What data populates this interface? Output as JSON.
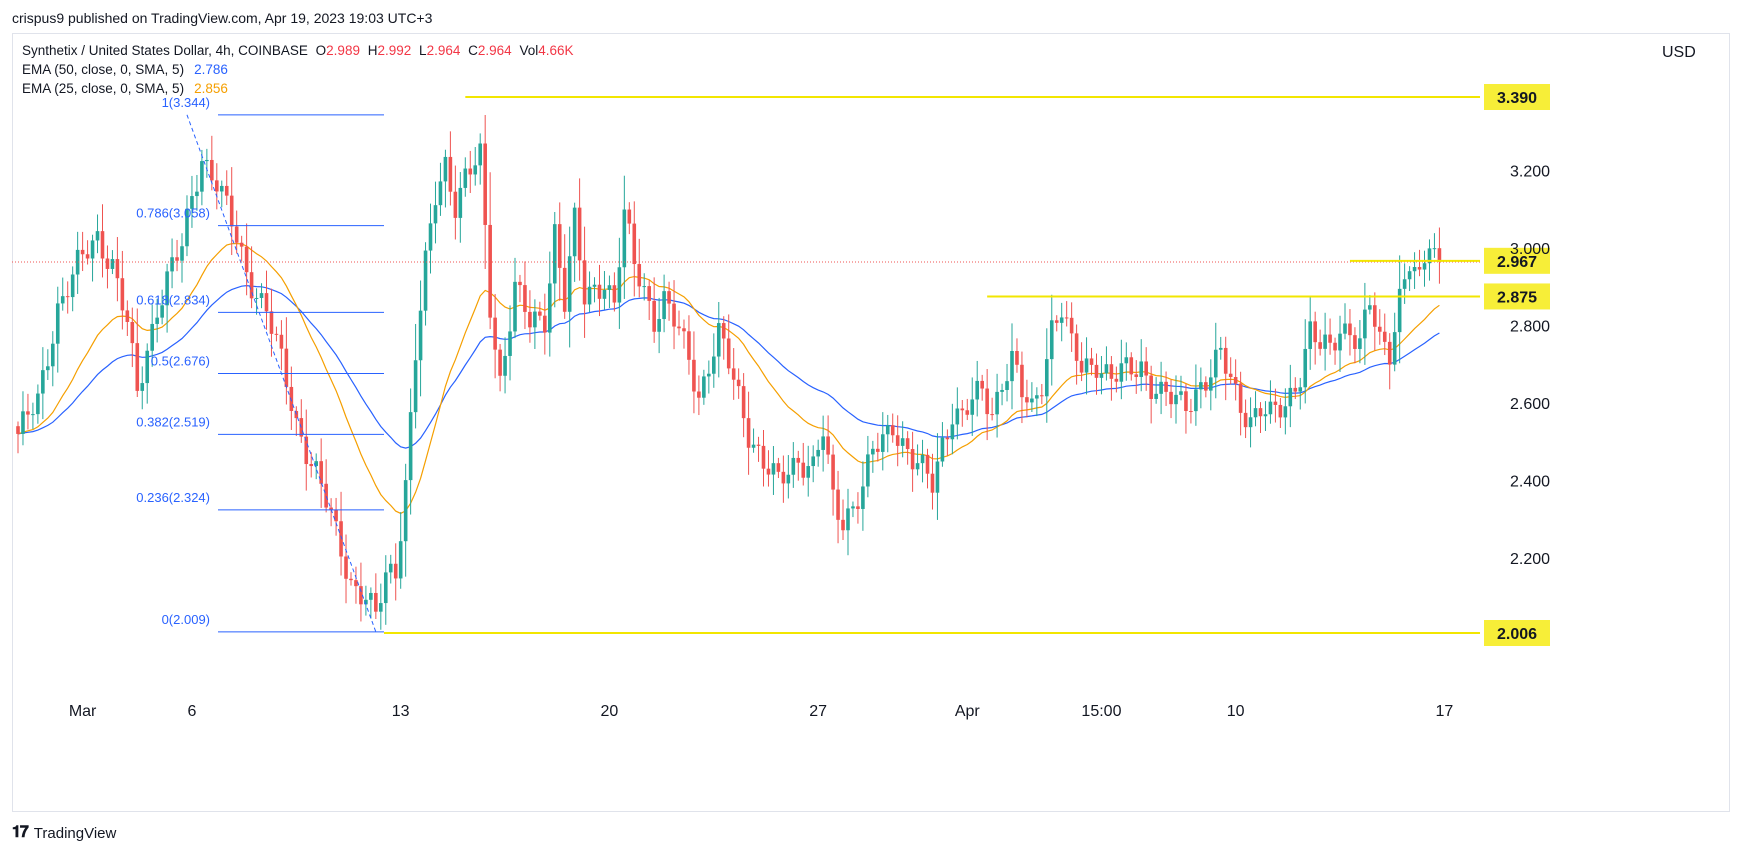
{
  "header": {
    "published": "crispus9 published on TradingView.com, Apr 19, 2023 19:03 UTC+3"
  },
  "legend": {
    "symbol": "Synthetix / United States Dollar, 4h, COINBASE",
    "open_k": "O",
    "open": "2.989",
    "high_k": "H",
    "high": "2.992",
    "low_k": "L",
    "low": "2.964",
    "close_k": "C",
    "close": "2.964",
    "vol_k": "Vol",
    "vol": "4.66K",
    "ema50_label": "EMA (50, close, 0, SMA, 5)",
    "ema50_value": "2.786",
    "ema25_label": "EMA (25, close, 0, SMA, 5)",
    "ema25_value": "2.856"
  },
  "currency": "USD",
  "brand": "TradingView",
  "colors": {
    "up": "#26a69a",
    "down": "#ef5350",
    "ema50": "#2962ff",
    "ema25": "#f59f00",
    "fib": "#2962ff",
    "level": "#f2e600",
    "tag_bg": "#f7ee38",
    "last": "#ef5350"
  },
  "chart_data": {
    "type": "candlestick",
    "ylim": [
      1.75,
      3.48
    ],
    "y_ticks": [
      {
        "value": 3.2,
        "label": "3.200"
      },
      {
        "value": 3.0,
        "label": "3.000"
      },
      {
        "value": 2.8,
        "label": "2.800"
      },
      {
        "value": 2.6,
        "label": "2.600"
      },
      {
        "value": 2.4,
        "label": "2.400"
      },
      {
        "value": 2.2,
        "label": "2.200"
      }
    ],
    "x_ticks": [
      {
        "index": 13,
        "label": "Mar"
      },
      {
        "index": 35,
        "label": "6"
      },
      {
        "index": 77,
        "label": "13"
      },
      {
        "index": 119,
        "label": "20"
      },
      {
        "index": 161,
        "label": "27"
      },
      {
        "index": 191,
        "label": "Apr"
      },
      {
        "index": 218,
        "label": "15:00"
      },
      {
        "index": 245,
        "label": "10"
      },
      {
        "index": 287,
        "label": "17"
      }
    ],
    "fib_levels": [
      {
        "label": "1(3.344)",
        "value": 3.344
      },
      {
        "label": "0.786(3.058)",
        "value": 3.058
      },
      {
        "label": "0.618(2.834)",
        "value": 2.834
      },
      {
        "label": "0.5(2.676)",
        "value": 2.676
      },
      {
        "label": "0.382(2.519)",
        "value": 2.519
      },
      {
        "label": "0.236(2.324)",
        "value": 2.324
      },
      {
        "label": "0(2.009)",
        "value": 2.009
      }
    ],
    "fib_range": {
      "from_index": 34,
      "to_index": 72
    },
    "horizontal_levels": [
      {
        "value": 3.39,
        "label": "3.390",
        "from_index": 90
      },
      {
        "value": 2.967,
        "label": "2.967",
        "from_index": 268
      },
      {
        "value": 2.875,
        "label": "2.875",
        "from_index": 195
      },
      {
        "value": 2.006,
        "label": "2.006",
        "from_index": 0
      }
    ],
    "last_price": 2.964,
    "anchors": [
      [
        0,
        2.52
      ],
      [
        4,
        2.6
      ],
      [
        8,
        2.85
      ],
      [
        12,
        2.95
      ],
      [
        16,
        3.03
      ],
      [
        19,
        2.96
      ],
      [
        22,
        2.8
      ],
      [
        24,
        2.62
      ],
      [
        26,
        2.74
      ],
      [
        28,
        2.85
      ],
      [
        30,
        2.92
      ],
      [
        33,
        3.0
      ],
      [
        35,
        3.13
      ],
      [
        37,
        3.24
      ],
      [
        40,
        3.17
      ],
      [
        43,
        3.06
      ],
      [
        46,
        2.94
      ],
      [
        50,
        2.84
      ],
      [
        53,
        2.7
      ],
      [
        56,
        2.55
      ],
      [
        60,
        2.42
      ],
      [
        64,
        2.26
      ],
      [
        67,
        2.14
      ],
      [
        70,
        2.1
      ],
      [
        72,
        2.04
      ],
      [
        74,
        2.15
      ],
      [
        76,
        2.17
      ],
      [
        78,
        2.4
      ],
      [
        80,
        2.73
      ],
      [
        82,
        2.95
      ],
      [
        84,
        3.13
      ],
      [
        86,
        3.22
      ],
      [
        88,
        3.12
      ],
      [
        90,
        3.18
      ],
      [
        93,
        3.23
      ],
      [
        95,
        2.85
      ],
      [
        97,
        2.66
      ],
      [
        100,
        2.9
      ],
      [
        103,
        2.8
      ],
      [
        106,
        2.82
      ],
      [
        108,
        3.05
      ],
      [
        110,
        2.86
      ],
      [
        112,
        3.06
      ],
      [
        114,
        2.87
      ],
      [
        116,
        2.9
      ],
      [
        118,
        2.92
      ],
      [
        120,
        2.85
      ],
      [
        122,
        3.08
      ],
      [
        124,
        2.96
      ],
      [
        126,
        2.9
      ],
      [
        128,
        2.82
      ],
      [
        130,
        2.86
      ],
      [
        133,
        2.78
      ],
      [
        135,
        2.72
      ],
      [
        137,
        2.62
      ],
      [
        139,
        2.7
      ],
      [
        141,
        2.77
      ],
      [
        143,
        2.7
      ],
      [
        145,
        2.62
      ],
      [
        147,
        2.53
      ],
      [
        150,
        2.44
      ],
      [
        153,
        2.39
      ],
      [
        155,
        2.43
      ],
      [
        157,
        2.46
      ],
      [
        160,
        2.43
      ],
      [
        162,
        2.52
      ],
      [
        164,
        2.35
      ],
      [
        166,
        2.3
      ],
      [
        168,
        2.34
      ],
      [
        170,
        2.38
      ],
      [
        172,
        2.47
      ],
      [
        174,
        2.5
      ],
      [
        176,
        2.55
      ],
      [
        178,
        2.5
      ],
      [
        180,
        2.45
      ],
      [
        182,
        2.42
      ],
      [
        184,
        2.39
      ],
      [
        186,
        2.5
      ],
      [
        188,
        2.58
      ],
      [
        190,
        2.56
      ],
      [
        192,
        2.6
      ],
      [
        194,
        2.63
      ],
      [
        196,
        2.58
      ],
      [
        198,
        2.66
      ],
      [
        200,
        2.71
      ],
      [
        202,
        2.62
      ],
      [
        204,
        2.58
      ],
      [
        206,
        2.66
      ],
      [
        208,
        2.8
      ],
      [
        210,
        2.84
      ],
      [
        212,
        2.74
      ],
      [
        214,
        2.69
      ],
      [
        217,
        2.71
      ],
      [
        220,
        2.66
      ],
      [
        223,
        2.68
      ],
      [
        226,
        2.7
      ],
      [
        228,
        2.65
      ],
      [
        230,
        2.62
      ],
      [
        233,
        2.6
      ],
      [
        235,
        2.6
      ],
      [
        238,
        2.65
      ],
      [
        240,
        2.67
      ],
      [
        242,
        2.72
      ],
      [
        244,
        2.66
      ],
      [
        246,
        2.6
      ],
      [
        248,
        2.56
      ],
      [
        250,
        2.58
      ],
      [
        252,
        2.56
      ],
      [
        255,
        2.6
      ],
      [
        258,
        2.68
      ],
      [
        260,
        2.78
      ],
      [
        262,
        2.74
      ],
      [
        264,
        2.74
      ],
      [
        266,
        2.8
      ],
      [
        268,
        2.79
      ],
      [
        270,
        2.75
      ],
      [
        272,
        2.85
      ],
      [
        274,
        2.76
      ],
      [
        276,
        2.74
      ],
      [
        278,
        2.88
      ],
      [
        280,
        2.96
      ],
      [
        282,
        2.9
      ],
      [
        284,
        3.02
      ],
      [
        286,
        2.96
      ]
    ]
  }
}
